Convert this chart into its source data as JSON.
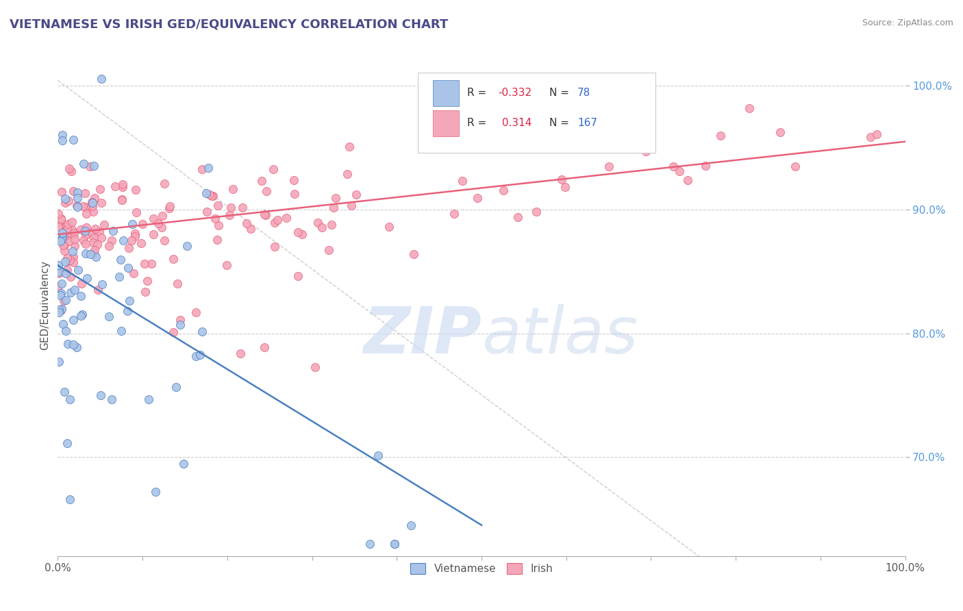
{
  "title": "VIETNAMESE VS IRISH GED/EQUIVALENCY CORRELATION CHART",
  "source": "Source: ZipAtlas.com",
  "ylabel": "GED/Equivalency",
  "ylabel_right_ticks": [
    "70.0%",
    "80.0%",
    "90.0%",
    "100.0%"
  ],
  "ylabel_right_values": [
    0.7,
    0.8,
    0.9,
    1.0
  ],
  "viet_color": "#aac4e8",
  "irish_color": "#f4a7b9",
  "viet_line_color": "#4a7fc1",
  "irish_line_color": "#e8607a",
  "watermark_color": "#c8d8f0",
  "background_color": "#ffffff",
  "title_color": "#4a4a8a",
  "right_tick_color": "#5599dd",
  "grid_color": "#cccccc",
  "seed": 42,
  "n_viet": 78,
  "n_irish": 167,
  "viet_line_x0": 0.0,
  "viet_line_x1": 0.5,
  "viet_line_y0": 0.855,
  "viet_line_y1": 0.645,
  "irish_line_x0": 0.0,
  "irish_line_x1": 1.0,
  "irish_line_y0": 0.88,
  "irish_line_y1": 0.955,
  "xmin": 0.0,
  "xmax": 1.0,
  "ymin": 0.62,
  "ymax": 1.025,
  "legend_r1_color": "#dd2244",
  "legend_n1_color": "#3366cc",
  "legend_r2_color": "#dd2244",
  "legend_n2_color": "#3366cc"
}
